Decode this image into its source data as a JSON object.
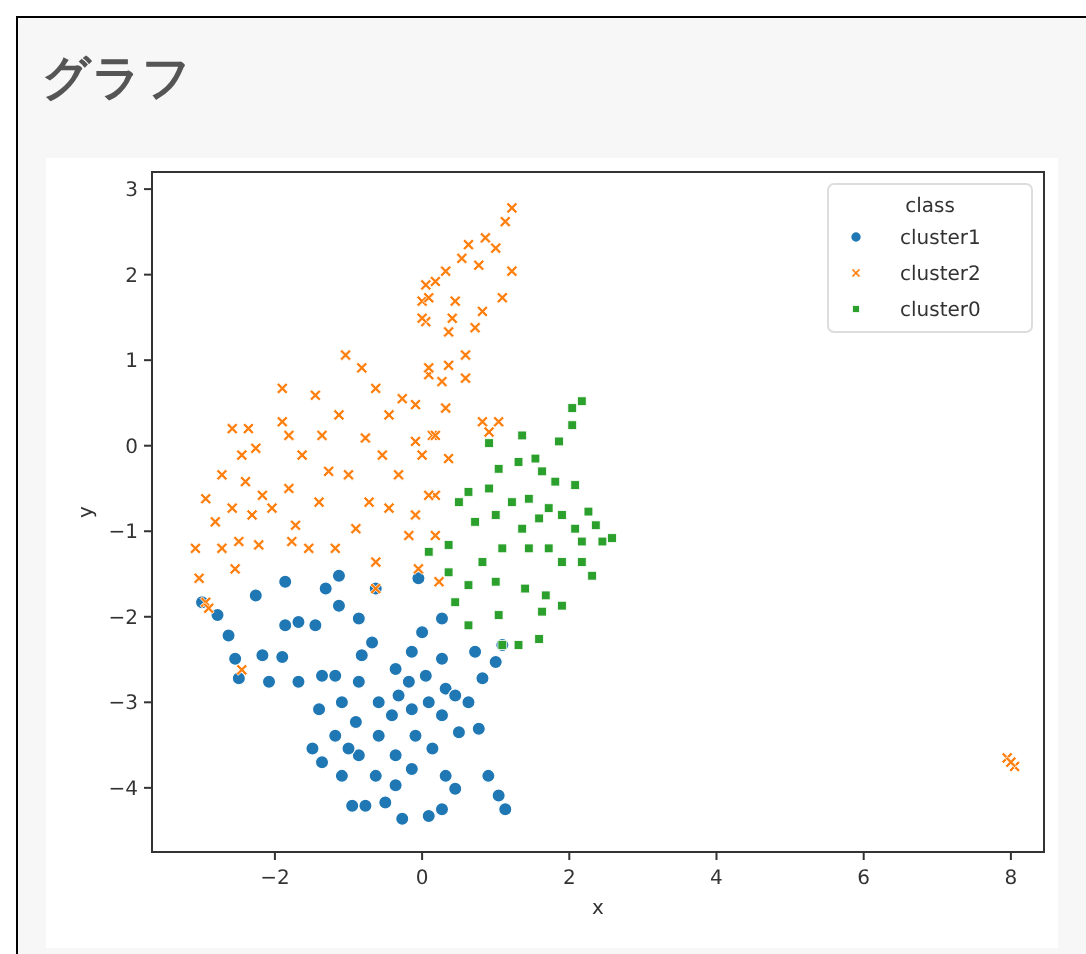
{
  "chart_data": {
    "type": "scatter",
    "title": "グラフ",
    "xlabel": "x",
    "ylabel": "y",
    "legend_title": "class",
    "legend": "top right",
    "grid": false,
    "xlim": [
      -3.67,
      8.45
    ],
    "ylim": [
      -4.75,
      3.2
    ],
    "xticks": [
      {
        "value": -2,
        "label": "−2"
      },
      0,
      2,
      4,
      6,
      8
    ],
    "yticks": [
      {
        "value": -4,
        "label": "−4"
      },
      {
        "value": -3,
        "label": "−3"
      },
      {
        "value": -2,
        "label": "−2"
      },
      {
        "value": -1,
        "label": "−1"
      },
      0,
      1,
      2,
      3
    ],
    "series": [
      {
        "name": "cluster1",
        "color": "#1f77b4",
        "marker": "circle",
        "x": [
          -2.99,
          -2.78,
          -2.63,
          -2.54,
          -2.49,
          -2.26,
          -2.17,
          -2.08,
          -1.86,
          -1.86,
          -1.9,
          -1.68,
          -1.45,
          -1.36,
          -1.4,
          -1.49,
          -1.36,
          -1.31,
          -1.13,
          -1.13,
          -1.18,
          -1.09,
          -1.18,
          -1.09,
          -0.95,
          -0.86,
          -0.82,
          -0.86,
          -0.9,
          -0.86,
          -0.77,
          -0.63,
          -0.68,
          -0.59,
          -0.59,
          -0.63,
          -0.5,
          -0.36,
          -0.41,
          -0.36,
          -0.36,
          -0.27,
          -0.14,
          -0.18,
          -0.14,
          -0.09,
          -0.14,
          -0.05,
          0.0,
          0.05,
          0.09,
          0.14,
          0.09,
          0.27,
          0.27,
          0.32,
          0.27,
          0.32,
          0.27,
          0.45,
          0.5,
          0.45,
          0.63,
          0.72,
          0.77,
          0.82,
          0.9,
          1.04,
          1.13,
          1.0,
          1.09,
          -0.32,
          -1.0,
          -1.68
        ],
        "values": [
          -1.83,
          -1.98,
          -2.22,
          -2.49,
          -2.72,
          -1.75,
          -2.45,
          -2.76,
          -1.59,
          -2.1,
          -2.47,
          -2.06,
          -2.1,
          -2.69,
          -3.08,
          -3.54,
          -3.7,
          -1.67,
          -1.52,
          -1.87,
          -2.69,
          -3.0,
          -3.39,
          -3.86,
          -4.21,
          -2.02,
          -2.45,
          -2.76,
          -3.23,
          -3.62,
          -4.21,
          -1.67,
          -2.3,
          -3.0,
          -3.39,
          -3.86,
          -4.17,
          -2.61,
          -3.15,
          -3.62,
          -3.97,
          -4.36,
          -2.41,
          -2.76,
          -3.08,
          -3.39,
          -3.78,
          -1.55,
          -2.18,
          -2.69,
          -3.0,
          -3.54,
          -4.33,
          -2.02,
          -2.49,
          -2.84,
          -3.15,
          -3.86,
          -4.25,
          -2.92,
          -3.35,
          -4.01,
          -3.0,
          -2.41,
          -3.31,
          -2.72,
          -3.86,
          -4.09,
          -4.25,
          -2.53,
          -2.33,
          -2.92,
          -3.54,
          -2.76
        ]
      },
      {
        "name": "cluster2",
        "color": "#ff7f0e",
        "marker": "cross",
        "x": [
          -3.08,
          -3.03,
          -2.94,
          -2.94,
          -2.81,
          -2.72,
          -2.72,
          -2.58,
          -2.58,
          -2.54,
          -2.45,
          -2.49,
          -2.4,
          -2.36,
          -2.31,
          -2.26,
          -2.22,
          -2.17,
          -2.04,
          -1.9,
          -1.9,
          -1.81,
          -1.81,
          -1.77,
          -1.72,
          -1.63,
          -1.54,
          -1.45,
          -1.4,
          -1.36,
          -1.27,
          -1.18,
          -1.13,
          -1.04,
          -1.0,
          -0.9,
          -0.82,
          -0.77,
          -0.72,
          -0.63,
          -0.63,
          -0.54,
          -0.45,
          -0.45,
          -0.32,
          -0.27,
          -0.18,
          -0.09,
          0.0,
          0.05,
          0.05,
          0.09,
          0.18,
          0.14,
          1.22,
          1.13,
          0.86,
          0.63,
          1.0,
          0.54,
          0.77,
          0.32,
          1.22,
          0.18,
          0.09,
          0.45,
          1.09,
          0.82,
          0.0,
          0.41,
          0.36,
          0.72,
          0.59,
          0.09,
          0.36,
          0.59,
          0.27,
          0.32,
          -0.09,
          0.82,
          1.04,
          0.91,
          0.18,
          0.36,
          0.0,
          0.09,
          -0.09,
          0.18,
          -0.05,
          0.23,
          -0.63,
          -2.9,
          -2.45,
          7.95,
          8.05,
          8.0
        ],
        "values": [
          -1.2,
          -1.55,
          -0.62,
          -1.83,
          -0.89,
          -0.34,
          -1.2,
          0.2,
          -0.73,
          -1.44,
          -0.11,
          -1.12,
          -0.42,
          0.2,
          -0.81,
          -0.03,
          -1.16,
          -0.58,
          -0.73,
          0.28,
          0.67,
          0.12,
          -0.5,
          -1.12,
          -0.93,
          -0.11,
          -1.2,
          0.59,
          -0.66,
          0.12,
          -0.3,
          -1.2,
          0.36,
          1.06,
          -0.34,
          -0.97,
          0.91,
          0.09,
          -0.66,
          0.67,
          -1.36,
          -0.11,
          0.36,
          -0.73,
          -0.34,
          0.55,
          -1.05,
          0.05,
          1.69,
          1.88,
          1.45,
          0.83,
          -0.58,
          0.12,
          2.78,
          2.62,
          2.43,
          2.35,
          2.31,
          2.19,
          2.11,
          2.04,
          2.04,
          1.92,
          1.73,
          1.69,
          1.73,
          1.57,
          1.49,
          1.49,
          1.33,
          1.38,
          1.06,
          0.91,
          0.94,
          0.79,
          0.75,
          0.44,
          0.48,
          0.28,
          0.28,
          0.16,
          0.12,
          -0.15,
          -0.11,
          -0.58,
          -0.81,
          -1.05,
          -1.44,
          -1.59,
          -1.67,
          -1.9,
          -2.62,
          -3.65,
          -3.75,
          -3.7
        ]
      },
      {
        "name": "cluster0",
        "color": "#2ca02c",
        "marker": "square",
        "x": [
          2.17,
          2.04,
          2.04,
          1.86,
          1.36,
          0.91,
          1.04,
          1.31,
          1.54,
          1.63,
          1.81,
          2.08,
          0.63,
          0.91,
          1.22,
          1.45,
          1.72,
          1.9,
          2.26,
          0.5,
          1.0,
          1.36,
          1.59,
          2.08,
          2.36,
          2.58,
          2.45,
          0.72,
          0.09,
          0.36,
          0.82,
          1.09,
          1.45,
          1.72,
          1.9,
          2.17,
          2.31,
          0.36,
          0.63,
          1.0,
          1.4,
          1.68,
          1.9,
          0.63,
          1.04,
          1.63,
          1.09,
          1.31,
          1.59,
          0.45,
          2.17
        ],
        "values": [
          0.52,
          0.44,
          0.24,
          0.05,
          0.12,
          0.03,
          -0.27,
          -0.19,
          -0.15,
          -0.3,
          -0.42,
          -0.46,
          -0.54,
          -0.5,
          -0.66,
          -0.62,
          -0.73,
          -0.81,
          -0.77,
          -0.66,
          -0.81,
          -0.97,
          -0.85,
          -0.97,
          -0.93,
          -1.08,
          -1.12,
          -0.89,
          -1.24,
          -1.16,
          -1.36,
          -1.2,
          -1.2,
          -1.2,
          -1.36,
          -1.36,
          -1.52,
          -1.48,
          -1.63,
          -1.59,
          -1.67,
          -1.75,
          -1.87,
          -2.1,
          -1.98,
          -1.94,
          -2.33,
          -2.33,
          -2.26,
          -1.83,
          -1.12
        ]
      }
    ]
  }
}
